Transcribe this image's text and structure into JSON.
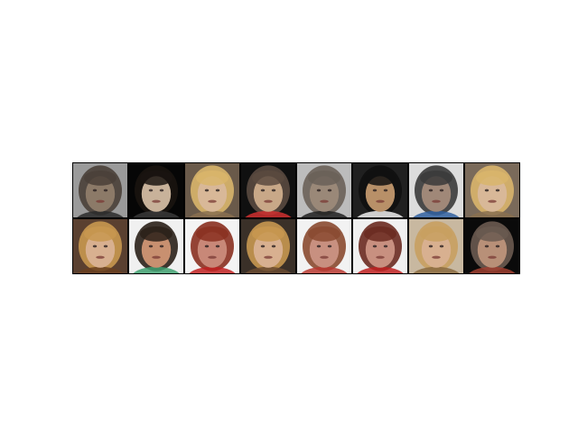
{
  "figure": {
    "grid": {
      "rows": 2,
      "cols": 8,
      "border_color": "#000000",
      "cells": [
        {
          "bg": "#9a9a9a",
          "skin": "#8c7a68",
          "hair": "#4a4038",
          "accent": "#2a2a2a"
        },
        {
          "bg": "#060606",
          "skin": "#c8b29a",
          "hair": "#1a1410",
          "accent": "#3a3a3a"
        },
        {
          "bg": "#6a5a4a",
          "skin": "#d8b898",
          "hair": "#d9b56b",
          "accent": "#8a7050"
        },
        {
          "bg": "#101010",
          "skin": "#c8a888",
          "hair": "#5a4a40",
          "accent": "#d03030"
        },
        {
          "bg": "#bcbcbc",
          "skin": "#9a8878",
          "hair": "#6a6058",
          "accent": "#202020"
        },
        {
          "bg": "#202020",
          "skin": "#b89068",
          "hair": "#101010",
          "accent": "#f0f0f0"
        },
        {
          "bg": "#dcdcdc",
          "skin": "#a08878",
          "hair": "#3a3a3a",
          "accent": "#3060a0"
        },
        {
          "bg": "#7a6a5a",
          "skin": "#d8b898",
          "hair": "#d9b56b",
          "accent": "#8a7050"
        },
        {
          "bg": "#5a4030",
          "skin": "#d8b090",
          "hair": "#c89850",
          "accent": "#6a4020"
        },
        {
          "bg": "#f0f0f0",
          "skin": "#c89070",
          "hair": "#2a2018",
          "accent": "#40a070"
        },
        {
          "bg": "#f4f4f4",
          "skin": "#c88878",
          "hair": "#8a3020",
          "accent": "#c02020"
        },
        {
          "bg": "#3a3028",
          "skin": "#d8b090",
          "hair": "#c89850",
          "accent": "#6a4a30"
        },
        {
          "bg": "#f2f2f2",
          "skin": "#c89080",
          "hair": "#8a4a30",
          "accent": "#b83830"
        },
        {
          "bg": "#f0f0f0",
          "skin": "#c89080",
          "hair": "#6a2a20",
          "accent": "#c02020"
        },
        {
          "bg": "#c8b8a0",
          "skin": "#d8b090",
          "hair": "#c8a060",
          "accent": "#8a6a40"
        },
        {
          "bg": "#0a0a0a",
          "skin": "#b89078",
          "hair": "#6a5a50",
          "accent": "#a04030"
        }
      ]
    }
  }
}
